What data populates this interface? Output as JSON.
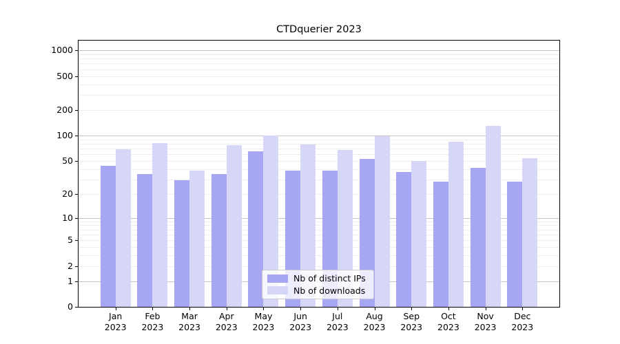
{
  "figure": {
    "background": "#ffffff"
  },
  "chart_data": {
    "type": "bar",
    "title": "CTDquerier 2023",
    "categories": [
      "Jan 2023",
      "Feb 2023",
      "Mar 2023",
      "Apr 2023",
      "May 2023",
      "Jun 2023",
      "Jul 2023",
      "Aug 2023",
      "Sep 2023",
      "Oct 2023",
      "Nov 2023",
      "Dec 2023"
    ],
    "series": [
      {
        "name": "Nb of distinct IPs",
        "color": "#a6a6f3",
        "values": [
          44,
          35,
          29,
          35,
          65,
          38,
          38,
          53,
          37,
          28,
          41,
          28
        ]
      },
      {
        "name": "Nb of downloads",
        "color": "#d6d6f7",
        "values": [
          68,
          82,
          38,
          77,
          100,
          78,
          67,
          98,
          50,
          85,
          130,
          54
        ]
      }
    ],
    "yscale": "log1p",
    "ylim": [
      0,
      1300
    ],
    "yticks": [
      0,
      1,
      2,
      5,
      10,
      20,
      50,
      100,
      200,
      500,
      1000
    ],
    "grid": "horizontal",
    "legend_position": "lower center",
    "xlabel": "",
    "ylabel": ""
  },
  "style": {
    "major_grid_color": "#c3c3c3",
    "minor_grid_color": "#ededed",
    "spine_color": "#000000",
    "legend_border_color": "#cccccc"
  }
}
